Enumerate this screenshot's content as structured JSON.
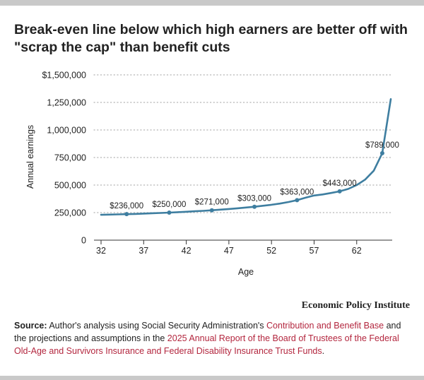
{
  "chart_data": {
    "type": "line",
    "title": "Break-even line below which high earners are better off with \"scrap the cap\" than benefit cuts",
    "xlabel": "Age",
    "ylabel": "Annual earnings",
    "xlim": [
      32,
      66
    ],
    "ylim": [
      0,
      1500000
    ],
    "x_ticks": [
      32,
      37,
      42,
      47,
      52,
      57,
      62
    ],
    "y_ticks": [
      {
        "value": 0,
        "label": "0"
      },
      {
        "value": 250000,
        "label": "250,000"
      },
      {
        "value": 500000,
        "label": "500,000"
      },
      {
        "value": 750000,
        "label": "750,000"
      },
      {
        "value": 1000000,
        "label": "1,000,000"
      },
      {
        "value": 1250000,
        "label": "1,250,000"
      },
      {
        "value": 1500000,
        "label": "$1,500,000"
      }
    ],
    "grid": "horizontal dotted",
    "series": [
      {
        "color": "#3e7ea0",
        "x": [
          32,
          33,
          34,
          35,
          36,
          37,
          38,
          39,
          40,
          41,
          42,
          43,
          44,
          45,
          46,
          47,
          48,
          49,
          50,
          51,
          52,
          53,
          54,
          55,
          56,
          57,
          58,
          59,
          60,
          61,
          62,
          63,
          64,
          65,
          66
        ],
        "y": [
          230000,
          232000,
          234000,
          236000,
          238000,
          241000,
          244000,
          247000,
          250000,
          254000,
          258000,
          262000,
          266000,
          271000,
          277000,
          283000,
          289000,
          296000,
          303000,
          312000,
          321000,
          332000,
          346000,
          363000,
          385000,
          405000,
          415000,
          428000,
          443000,
          465000,
          500000,
          550000,
          630000,
          789000,
          1280000
        ]
      }
    ],
    "annotations": [
      {
        "x": 35,
        "y": 236000,
        "label": "$236,000"
      },
      {
        "x": 40,
        "y": 250000,
        "label": "$250,000"
      },
      {
        "x": 45,
        "y": 271000,
        "label": "$271,000"
      },
      {
        "x": 50,
        "y": 303000,
        "label": "$303,000"
      },
      {
        "x": 55,
        "y": 363000,
        "label": "$363,000"
      },
      {
        "x": 60,
        "y": 443000,
        "label": "$443,000"
      },
      {
        "x": 65,
        "y": 789000,
        "label": "$789,000"
      }
    ]
  },
  "footer": {
    "brand": "Economic Policy Institute",
    "source_label": "Source:",
    "source_text_1": " Author's analysis using Social Security Administration's ",
    "source_link_1": "Contribution and Benefit Base",
    "source_text_2": " and the projections and assumptions in the ",
    "source_link_2": "2025 Annual Report of the Board of Trustees of the Federal Old-Age and Survivors Insurance and Federal Disability Insurance Trust Funds",
    "source_text_3": "."
  }
}
